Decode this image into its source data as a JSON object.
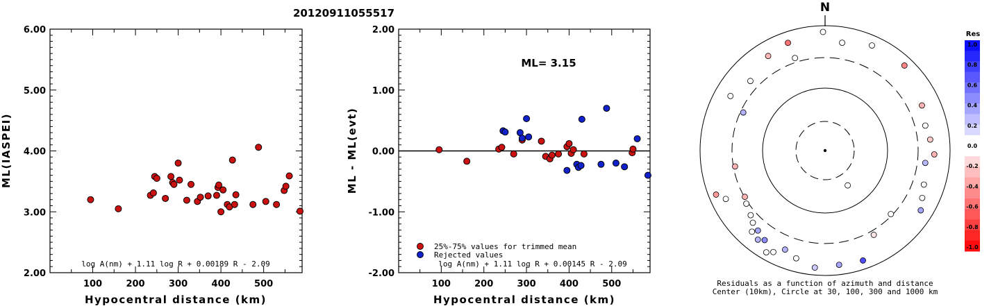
{
  "title": "20120911055517",
  "chart_data": [
    {
      "type": "scatter",
      "xlabel": "Hypocentral distance (km)",
      "ylabel": "ML(IASPEI)",
      "xlim": [
        0,
        590
      ],
      "ylim": [
        2.0,
        6.0
      ],
      "xticks": [
        100,
        200,
        300,
        400,
        500
      ],
      "yticks": [
        "2.00",
        "3.00",
        "4.00",
        "5.00",
        "6.00"
      ],
      "formula": "log A(nm) + 1.11 log R + 0.00189 R - 2.09",
      "marker_color": "#cc1111",
      "points": [
        [
          95,
          3.2
        ],
        [
          160,
          3.05
        ],
        [
          235,
          3.27
        ],
        [
          242,
          3.31
        ],
        [
          245,
          3.58
        ],
        [
          250,
          3.55
        ],
        [
          270,
          3.22
        ],
        [
          283,
          3.58
        ],
        [
          287,
          3.48
        ],
        [
          290,
          3.45
        ],
        [
          300,
          3.8
        ],
        [
          303,
          3.52
        ],
        [
          320,
          3.19
        ],
        [
          330,
          3.45
        ],
        [
          345,
          3.17
        ],
        [
          352,
          3.24
        ],
        [
          370,
          3.26
        ],
        [
          390,
          3.27
        ],
        [
          393,
          3.4
        ],
        [
          395,
          3.44
        ],
        [
          400,
          3.0
        ],
        [
          405,
          3.36
        ],
        [
          415,
          3.12
        ],
        [
          420,
          3.08
        ],
        [
          427,
          3.85
        ],
        [
          432,
          3.12
        ],
        [
          435,
          3.28
        ],
        [
          475,
          3.12
        ],
        [
          488,
          4.06
        ],
        [
          505,
          3.17
        ],
        [
          530,
          3.12
        ],
        [
          548,
          3.35
        ],
        [
          552,
          3.42
        ],
        [
          560,
          3.59
        ],
        [
          585,
          3.01
        ]
      ]
    },
    {
      "type": "scatter",
      "xlabel": "Hypocentral distance (km)",
      "ylabel": "ML - ML(evt)",
      "xlim": [
        0,
        590
      ],
      "ylim": [
        -2.0,
        2.0
      ],
      "xticks": [
        100,
        200,
        300,
        400,
        500
      ],
      "yticks": [
        "-2.00",
        "-1.00",
        "0.00",
        "1.00",
        "2.00"
      ],
      "annotation": "ML= 3.15",
      "formula": "log A(nm) + 1.11 log R + 0.00145 R - 2.09",
      "legend": [
        "25%-75% values for trimmed mean",
        "Rejected values"
      ],
      "legend_colors": [
        "#cc1111",
        "#1122cc"
      ],
      "used": [
        [
          95,
          0.02
        ],
        [
          160,
          -0.17
        ],
        [
          235,
          0.03
        ],
        [
          242,
          0.06
        ],
        [
          270,
          -0.05
        ],
        [
          290,
          0.18
        ],
        [
          335,
          0.16
        ],
        [
          345,
          -0.09
        ],
        [
          355,
          -0.13
        ],
        [
          360,
          -0.07
        ],
        [
          375,
          -0.05
        ],
        [
          395,
          0.07
        ],
        [
          400,
          0.12
        ],
        [
          405,
          -0.04
        ],
        [
          410,
          0.02
        ],
        [
          435,
          -0.05
        ],
        [
          548,
          -0.03
        ],
        [
          550,
          0.03
        ]
      ],
      "rejected": [
        [
          245,
          0.33
        ],
        [
          250,
          0.31
        ],
        [
          285,
          0.3
        ],
        [
          290,
          0.21
        ],
        [
          300,
          0.53
        ],
        [
          305,
          0.23
        ],
        [
          395,
          -0.32
        ],
        [
          418,
          -0.22
        ],
        [
          422,
          -0.27
        ],
        [
          428,
          -0.24
        ],
        [
          430,
          0.52
        ],
        [
          475,
          -0.22
        ],
        [
          488,
          0.7
        ],
        [
          510,
          -0.2
        ],
        [
          530,
          -0.26
        ],
        [
          560,
          0.2
        ],
        [
          585,
          -0.4
        ]
      ]
    },
    {
      "type": "polar",
      "north_label": "N",
      "colorbar_title": "Res",
      "colorbar_ticks": [
        "1.0",
        "0.8",
        "0.6",
        "0.4",
        "0.2",
        "0.0",
        "-0.2",
        "-0.4",
        "-0.6",
        "-0.8",
        "-1.0"
      ],
      "caption_line1": "Residuals as a function of azimuth and distance",
      "caption_line2": "Center (10km), Circle at 30, 100, 300 and 1000 km",
      "stations": [
        [
          359,
          0.03
        ],
        [
          329,
          -0.28
        ],
        [
          341,
          -0.55
        ],
        [
          342,
          0.01
        ],
        [
          9,
          0.02
        ],
        [
          24,
          -0.04
        ],
        [
          43,
          -0.48
        ],
        [
          65,
          -0.3
        ],
        [
          76,
          0.08
        ],
        [
          84,
          -0.2
        ],
        [
          92,
          -0.3
        ],
        [
          97,
          0.28
        ],
        [
          109,
          0.02
        ],
        [
          116,
          0.0
        ],
        [
          122,
          0.35
        ],
        [
          134,
          0.0
        ],
        [
          147,
          0.05
        ],
        [
          161,
          0.7
        ],
        [
          173,
          0.35
        ],
        [
          185,
          0.2
        ],
        [
          195,
          0.08
        ],
        [
          202,
          0.3
        ],
        [
          207,
          0.08
        ],
        [
          210,
          0.0
        ],
        [
          214,
          0.45
        ],
        [
          217,
          0.3
        ],
        [
          220,
          0.35
        ],
        [
          222,
          -0.05
        ],
        [
          225,
          0.0
        ],
        [
          229,
          0.0
        ],
        [
          236,
          0.0
        ],
        [
          240,
          -0.3
        ],
        [
          260,
          -0.3
        ],
        [
          295,
          0.3
        ],
        [
          313,
          0.05
        ],
        [
          150,
          -0.1
        ],
        [
          244,
          0.0
        ],
        [
          248,
          -0.4
        ],
        [
          300,
          -0.05
        ]
      ],
      "station_radii": [
        1.0,
        0.93,
        0.96,
        0.82,
        0.92,
        0.97,
        0.98,
        0.9,
        0.87,
        0.89,
        0.92,
        0.85,
        0.88,
        0.91,
        0.95,
        0.77,
        0.35,
        0.98,
        0.97,
        0.99,
        0.94,
        0.9,
        0.96,
        0.99,
        0.91,
        0.94,
        0.88,
        0.92,
        0.86,
        0.83,
        0.8,
        0.78,
        0.77,
        0.76,
        0.86,
        0.82,
        0.93,
        0.99,
        0.92
      ]
    }
  ]
}
